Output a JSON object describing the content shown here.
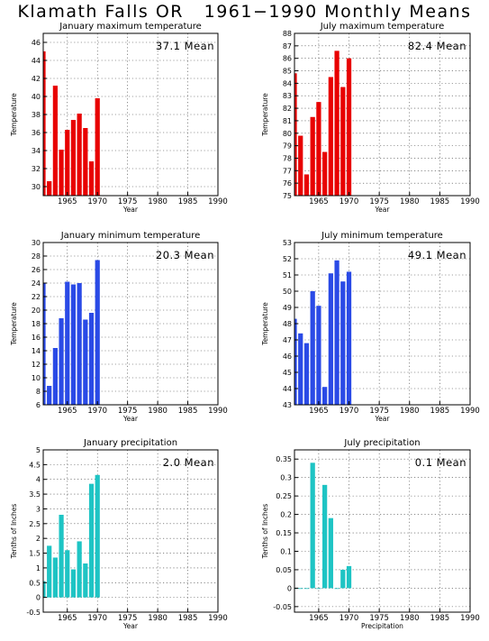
{
  "page": {
    "title": "Klamath Falls OR   1961−1990 Monthly Means"
  },
  "chart_data": [
    {
      "type": "bar",
      "title": "January maximum temperature",
      "xlabel": "Year",
      "ylabel": "Temperature",
      "mean_label": "37.1 Mean",
      "color": "#e80000",
      "grid": true,
      "xlim": [
        1961,
        1990
      ],
      "ylim": [
        29,
        47
      ],
      "xticks": [
        1965,
        1970,
        1975,
        1980,
        1985,
        1990
      ],
      "yticks": [
        30,
        32,
        34,
        36,
        38,
        40,
        42,
        44,
        46
      ],
      "x": [
        1961,
        1962,
        1963,
        1964,
        1965,
        1966,
        1967,
        1968,
        1969,
        1970
      ],
      "values": [
        45.0,
        30.6,
        41.2,
        34.1,
        36.3,
        37.4,
        38.1,
        36.5,
        32.8,
        39.8
      ]
    },
    {
      "type": "bar",
      "title": "July maximum temperature",
      "xlabel": "Year",
      "ylabel": "Temperature",
      "mean_label": "82.4 Mean",
      "color": "#e80000",
      "grid": true,
      "xlim": [
        1961,
        1990
      ],
      "ylim": [
        75,
        88
      ],
      "xticks": [
        1965,
        1970,
        1975,
        1980,
        1985,
        1990
      ],
      "yticks": [
        75,
        76,
        77,
        78,
        79,
        80,
        81,
        82,
        83,
        84,
        85,
        86,
        87,
        88
      ],
      "x": [
        1961,
        1962,
        1963,
        1964,
        1965,
        1966,
        1967,
        1968,
        1969,
        1970
      ],
      "values": [
        84.8,
        79.8,
        76.7,
        81.3,
        82.5,
        78.5,
        84.5,
        86.6,
        83.7,
        86.0
      ]
    },
    {
      "type": "bar",
      "title": "January minimum temperature",
      "xlabel": "Year",
      "ylabel": "Temperature",
      "mean_label": "20.3 Mean",
      "color": "#2a4ae6",
      "grid": true,
      "xlim": [
        1961,
        1990
      ],
      "ylim": [
        6,
        30
      ],
      "xticks": [
        1965,
        1970,
        1975,
        1980,
        1985,
        1990
      ],
      "yticks": [
        6,
        8,
        10,
        12,
        14,
        16,
        18,
        20,
        22,
        24,
        26,
        28,
        30
      ],
      "x": [
        1961,
        1962,
        1963,
        1964,
        1965,
        1966,
        1967,
        1968,
        1969,
        1970
      ],
      "values": [
        24.0,
        8.8,
        14.4,
        18.8,
        24.2,
        23.8,
        24.0,
        18.6,
        19.6,
        27.4
      ]
    },
    {
      "type": "bar",
      "title": "July minimum temperature",
      "xlabel": "Year",
      "ylabel": "Temperature",
      "mean_label": "49.1 Mean",
      "color": "#2a4ae6",
      "grid": true,
      "xlim": [
        1961,
        1990
      ],
      "ylim": [
        43,
        53
      ],
      "xticks": [
        1965,
        1970,
        1975,
        1980,
        1985,
        1990
      ],
      "yticks": [
        43,
        44,
        45,
        46,
        47,
        48,
        49,
        50,
        51,
        52,
        53
      ],
      "x": [
        1961,
        1962,
        1963,
        1964,
        1965,
        1966,
        1967,
        1968,
        1969,
        1970
      ],
      "values": [
        48.3,
        47.4,
        46.8,
        50.0,
        49.1,
        44.1,
        51.1,
        51.9,
        50.6,
        51.2
      ]
    },
    {
      "type": "bar",
      "title": "January precipitation",
      "xlabel": "Year",
      "ylabel": "Tenths of Inches",
      "mean_label": "2.0 Mean",
      "color": "#1ec4c4",
      "grid": true,
      "xlim": [
        1961,
        1990
      ],
      "ylim": [
        -0.5,
        5
      ],
      "xticks": [
        1965,
        1970,
        1975,
        1980,
        1985,
        1990
      ],
      "yticks": [
        -0.5,
        0,
        0.5,
        1,
        1.5,
        2,
        2.5,
        3,
        3.5,
        4,
        4.5,
        5
      ],
      "x": [
        1961,
        1962,
        1963,
        1964,
        1965,
        1966,
        1967,
        1968,
        1969,
        1970
      ],
      "values": [
        0.55,
        1.75,
        1.35,
        2.8,
        1.6,
        0.95,
        1.9,
        1.15,
        3.85,
        4.15
      ]
    },
    {
      "type": "bar",
      "title": "July precipitation",
      "xlabel": "Precipitation",
      "ylabel": "Tenths of Inches",
      "mean_label": "0.1 Mean",
      "color": "#1ec4c4",
      "grid": true,
      "xlim": [
        1961,
        1990
      ],
      "ylim": [
        -0.065,
        0.375
      ],
      "xticks": [
        1965,
        1970,
        1975,
        1980,
        1985,
        1990
      ],
      "yticks": [
        -0.05,
        0,
        0.05,
        0.1,
        0.15,
        0.2,
        0.25,
        0.3,
        0.35
      ],
      "x": [
        1961,
        1962,
        1963,
        1964,
        1965,
        1966,
        1967,
        1968,
        1969,
        1970
      ],
      "values": [
        0,
        0,
        0,
        0.34,
        0,
        0.28,
        0.19,
        0,
        0.05,
        0.06
      ]
    }
  ]
}
